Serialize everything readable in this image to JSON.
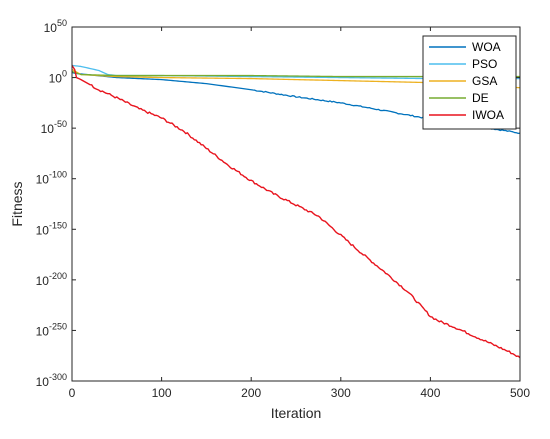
{
  "chart_data": {
    "type": "line",
    "xlabel": "Iteration",
    "ylabel": "Fitness",
    "xlim": [
      0,
      500
    ],
    "ylim_log10": [
      -300,
      50
    ],
    "yscale": "log",
    "x_ticks": [
      "0",
      "100",
      "200",
      "300",
      "400",
      "500"
    ],
    "y_ticks": [
      {
        "base": "10",
        "exp": "50"
      },
      {
        "base": "10",
        "exp": "0"
      },
      {
        "base": "10",
        "exp": "-50"
      },
      {
        "base": "10",
        "exp": "-100"
      },
      {
        "base": "10",
        "exp": "-150"
      },
      {
        "base": "10",
        "exp": "-200"
      },
      {
        "base": "10",
        "exp": "-250"
      },
      {
        "base": "10",
        "exp": "-300"
      }
    ],
    "grid": false,
    "legend_position": "top-right",
    "series_log10": [
      {
        "name": "WOA",
        "color": "#0072BD",
        "x": [
          0,
          5,
          50,
          100,
          150,
          200,
          250,
          300,
          350,
          400,
          450,
          480,
          500
        ],
        "log10_y": [
          5,
          4,
          0,
          -2,
          -6,
          -12,
          -19,
          -25,
          -33,
          -41,
          -48,
          -52,
          -55
        ]
      },
      {
        "name": "PSO",
        "color": "#4DBEEE",
        "x": [
          0,
          10,
          20,
          30,
          40,
          50,
          100,
          200,
          300,
          400,
          500
        ],
        "log10_y": [
          12,
          11,
          9,
          7,
          3,
          2,
          2,
          1,
          0,
          -1,
          -1
        ]
      },
      {
        "name": "GSA",
        "color": "#EDB120",
        "x": [
          0,
          10,
          50,
          100,
          200,
          300,
          400,
          450,
          500
        ],
        "log10_y": [
          8,
          3,
          1,
          0,
          -1,
          -3,
          -5,
          -8,
          -10
        ]
      },
      {
        "name": "DE",
        "color": "#77AC30",
        "x": [
          0,
          10,
          50,
          100,
          200,
          300,
          400,
          500
        ],
        "log10_y": [
          6,
          3,
          2,
          2,
          2,
          1,
          1,
          1
        ]
      },
      {
        "name": "IWOA",
        "color": "#E8141E",
        "x": [
          0,
          3,
          5,
          10,
          20,
          30,
          50,
          75,
          100,
          125,
          150,
          175,
          200,
          225,
          250,
          275,
          300,
          325,
          350,
          375,
          400,
          410,
          425,
          450,
          475,
          490,
          500
        ],
        "log10_y": [
          12,
          8,
          0,
          -2,
          -7,
          -12,
          -20,
          -31,
          -40,
          -53,
          -70,
          -87,
          -102,
          -115,
          -126,
          -137,
          -156,
          -175,
          -193,
          -212,
          -236,
          -241,
          -246,
          -256,
          -266,
          -272,
          -277
        ]
      }
    ]
  }
}
